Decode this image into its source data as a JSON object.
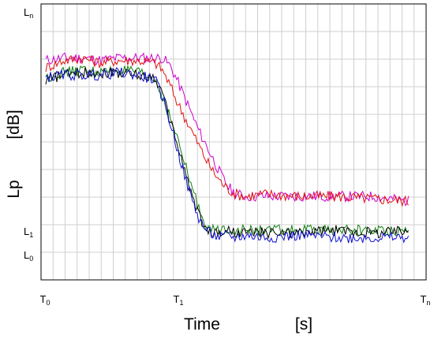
{
  "chart_data": {
    "type": "line",
    "title": "",
    "xlabel": "Time",
    "xunit": "[s]",
    "ylabel": "Lp",
    "yunit": "[dB]",
    "grid": true,
    "legend": "none",
    "x_ticks": [
      {
        "x": 0,
        "base": "T",
        "sub": "0"
      },
      {
        "x": 0.333,
        "base": "T",
        "sub": "1"
      },
      {
        "x": 1,
        "base": "T",
        "sub": "n"
      }
    ],
    "y_ticks": [
      {
        "y": 0,
        "base": "L",
        "sub": "0"
      },
      {
        "y": 0.097,
        "base": "L",
        "sub": "1"
      },
      {
        "y": 1.0,
        "base": "L",
        "sub": "n"
      }
    ],
    "xlim": [
      0,
      1
    ],
    "ylim": [
      -0.13,
      1.0
    ],
    "x": [
      0,
      0.05,
      0.1,
      0.15,
      0.2,
      0.25,
      0.3,
      0.32,
      0.34,
      0.36,
      0.38,
      0.4,
      0.42,
      0.44,
      0.46,
      0.48,
      0.5,
      0.52,
      0.55,
      0.6,
      0.7,
      0.8,
      0.9,
      0.995
    ],
    "series": [
      {
        "color": "#d000d0",
        "values": [
          0.8,
          0.81,
          0.81,
          0.8,
          0.81,
          0.81,
          0.81,
          0.81,
          0.78,
          0.72,
          0.65,
          0.58,
          0.51,
          0.45,
          0.39,
          0.33,
          0.28,
          0.25,
          0.24,
          0.24,
          0.24,
          0.24,
          0.24,
          0.22
        ]
      },
      {
        "color": "#e01010",
        "values": [
          0.77,
          0.8,
          0.81,
          0.79,
          0.8,
          0.8,
          0.79,
          0.76,
          0.7,
          0.63,
          0.57,
          0.51,
          0.45,
          0.39,
          0.34,
          0.3,
          0.27,
          0.25,
          0.24,
          0.25,
          0.24,
          0.24,
          0.23,
          0.22
        ]
      },
      {
        "color": "#108010",
        "values": [
          0.73,
          0.75,
          0.76,
          0.75,
          0.76,
          0.75,
          0.72,
          0.65,
          0.57,
          0.48,
          0.38,
          0.28,
          0.19,
          0.12,
          0.1,
          0.1,
          0.11,
          0.1,
          0.1,
          0.1,
          0.1,
          0.1,
          0.1,
          0.1
        ]
      },
      {
        "color": "#000000",
        "values": [
          0.72,
          0.74,
          0.75,
          0.75,
          0.75,
          0.74,
          0.73,
          0.66,
          0.56,
          0.46,
          0.35,
          0.25,
          0.16,
          0.1,
          0.09,
          0.09,
          0.1,
          0.09,
          0.09,
          0.09,
          0.09,
          0.1,
          0.09,
          0.1
        ]
      },
      {
        "color": "#1010d0",
        "values": [
          0.73,
          0.74,
          0.74,
          0.74,
          0.75,
          0.74,
          0.72,
          0.65,
          0.55,
          0.44,
          0.33,
          0.23,
          0.15,
          0.1,
          0.08,
          0.07,
          0.08,
          0.07,
          0.08,
          0.07,
          0.08,
          0.07,
          0.07,
          0.07
        ]
      }
    ]
  }
}
